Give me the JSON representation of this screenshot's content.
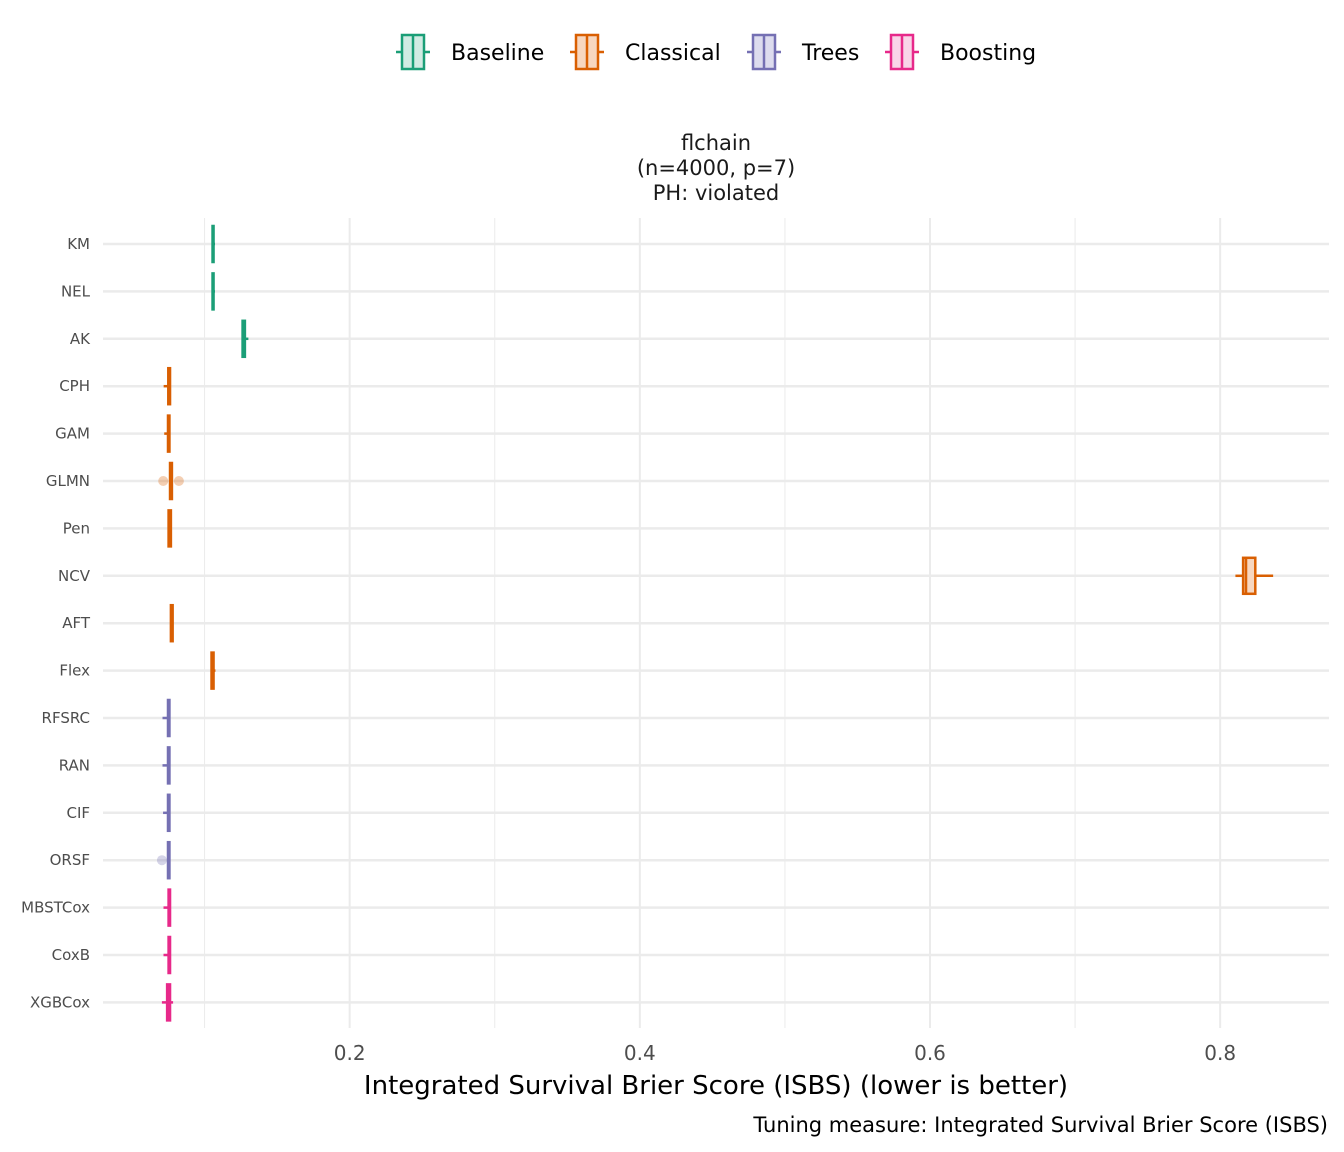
{
  "legend": {
    "items": [
      {
        "label": "Baseline",
        "color": "#1B9E77"
      },
      {
        "label": "Classical",
        "color": "#D95F02"
      },
      {
        "label": "Trees",
        "color": "#7570B3"
      },
      {
        "label": "Boosting",
        "color": "#E7298A"
      }
    ]
  },
  "facet": {
    "line1": "flchain",
    "line2": "(n=4000, p=7)",
    "line3": "PH: violated"
  },
  "caption": "Tuning measure: Integrated Survival Brier Score (ISBS)",
  "chart_data": {
    "type": "boxplot",
    "orientation": "horizontal",
    "title": "",
    "xlabel": "Integrated Survival Brier Score (ISBS) (lower is better)",
    "ylabel": "",
    "xlim": [
      0.03,
      0.875
    ],
    "x_ticks": [
      "0.2",
      "0.4",
      "0.6",
      "0.8"
    ],
    "x_tick_values": [
      0.2,
      0.4,
      0.6,
      0.8
    ],
    "grid": true,
    "legend_position": "top",
    "categories": [
      "KM",
      "NEL",
      "AK",
      "CPH",
      "GAM",
      "GLMN",
      "Pen",
      "NCV",
      "AFT",
      "Flex",
      "RFSRC",
      "RAN",
      "CIF",
      "ORSF",
      "MBSTCox",
      "CoxB",
      "XGBCox"
    ],
    "boxes": [
      {
        "label": "KM",
        "group": "Baseline",
        "min": 0.1055,
        "q1": 0.1055,
        "median": 0.1058,
        "q3": 0.1062,
        "max": 0.1072,
        "outliers": []
      },
      {
        "label": "NEL",
        "group": "Baseline",
        "min": 0.1055,
        "q1": 0.1055,
        "median": 0.1058,
        "q3": 0.1062,
        "max": 0.1072,
        "outliers": []
      },
      {
        "label": "AK",
        "group": "Baseline",
        "min": 0.1262,
        "q1": 0.1262,
        "median": 0.127,
        "q3": 0.1278,
        "max": 0.1302,
        "outliers": []
      },
      {
        "label": "CPH",
        "group": "Classical",
        "min": 0.0718,
        "q1": 0.075,
        "median": 0.0755,
        "q3": 0.0762,
        "max": 0.0765,
        "outliers": []
      },
      {
        "label": "GAM",
        "group": "Classical",
        "min": 0.0722,
        "q1": 0.0748,
        "median": 0.0752,
        "q3": 0.0758,
        "max": 0.0762,
        "outliers": []
      },
      {
        "label": "GLMN",
        "group": "Classical",
        "min": 0.0762,
        "q1": 0.0762,
        "median": 0.0768,
        "q3": 0.0775,
        "max": 0.0775,
        "outliers": [
          0.0715,
          0.0823
        ]
      },
      {
        "label": "Pen",
        "group": "Classical",
        "min": 0.0752,
        "q1": 0.0752,
        "median": 0.0758,
        "q3": 0.0768,
        "max": 0.0768,
        "outliers": []
      },
      {
        "label": "NCV",
        "group": "Classical",
        "min": 0.8105,
        "q1": 0.8158,
        "median": 0.8178,
        "q3": 0.8242,
        "max": 0.8365,
        "outliers": []
      },
      {
        "label": "AFT",
        "group": "Classical",
        "min": 0.0762,
        "q1": 0.0768,
        "median": 0.0772,
        "q3": 0.078,
        "max": 0.0783,
        "outliers": []
      },
      {
        "label": "Flex",
        "group": "Classical",
        "min": 0.1048,
        "q1": 0.1048,
        "median": 0.1055,
        "q3": 0.1062,
        "max": 0.1075,
        "outliers": []
      },
      {
        "label": "RFSRC",
        "group": "Trees",
        "min": 0.071,
        "q1": 0.0748,
        "median": 0.0752,
        "q3": 0.0758,
        "max": 0.0758,
        "outliers": []
      },
      {
        "label": "RAN",
        "group": "Trees",
        "min": 0.071,
        "q1": 0.0748,
        "median": 0.0752,
        "q3": 0.0758,
        "max": 0.0758,
        "outliers": []
      },
      {
        "label": "CIF",
        "group": "Trees",
        "min": 0.0714,
        "q1": 0.0748,
        "median": 0.0752,
        "q3": 0.0758,
        "max": 0.0762,
        "outliers": []
      },
      {
        "label": "ORSF",
        "group": "Trees",
        "min": 0.0745,
        "q1": 0.0748,
        "median": 0.0752,
        "q3": 0.0758,
        "max": 0.0758,
        "outliers": [
          0.0706
        ]
      },
      {
        "label": "MBSTCox",
        "group": "Boosting",
        "min": 0.0717,
        "q1": 0.0752,
        "median": 0.0755,
        "q3": 0.0762,
        "max": 0.0762,
        "outliers": []
      },
      {
        "label": "CoxB",
        "group": "Boosting",
        "min": 0.0717,
        "q1": 0.0752,
        "median": 0.0755,
        "q3": 0.0762,
        "max": 0.0762,
        "outliers": []
      },
      {
        "label": "XGBCox",
        "group": "Boosting",
        "min": 0.0706,
        "q1": 0.0742,
        "median": 0.0752,
        "q3": 0.0762,
        "max": 0.0783,
        "outliers": []
      }
    ]
  }
}
